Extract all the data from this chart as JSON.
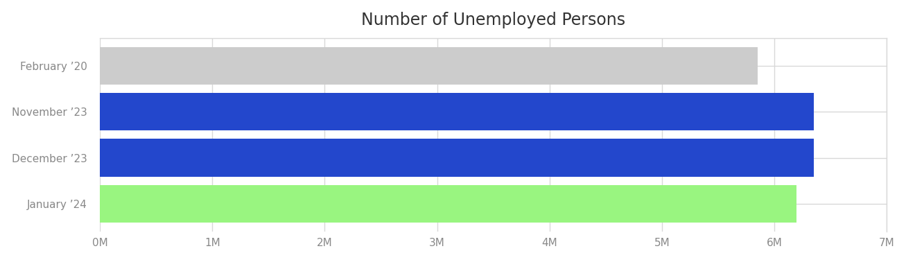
{
  "title": "Number of Unemployed Persons",
  "categories": [
    "January ’24",
    "December ’23",
    "November ’23",
    "February ’20"
  ],
  "values": [
    6200000,
    6350000,
    6350000,
    5850000
  ],
  "bar_colors": [
    "#99f580",
    "#2347cc",
    "#2347cc",
    "#cccccc"
  ],
  "xlim": [
    0,
    7000000
  ],
  "xticks": [
    0,
    1000000,
    2000000,
    3000000,
    4000000,
    5000000,
    6000000,
    7000000
  ],
  "xtick_labels": [
    "0M",
    "1M",
    "2M",
    "3M",
    "4M",
    "5M",
    "6M",
    "7M"
  ],
  "title_fontsize": 17,
  "tick_fontsize": 11,
  "background_color": "#ffffff",
  "grid_color": "#d8d8d8",
  "bar_height": 0.82
}
